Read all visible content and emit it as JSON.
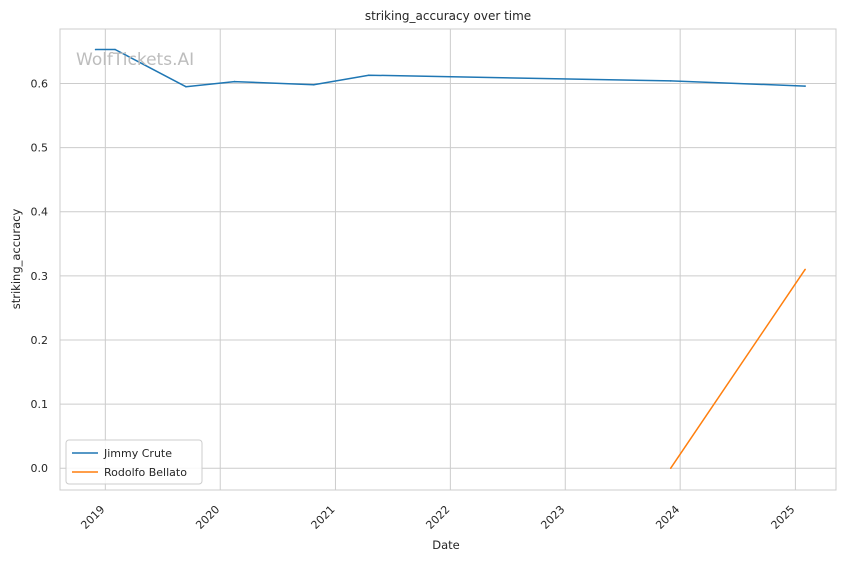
{
  "chart_data": {
    "type": "line",
    "title": "striking_accuracy over time",
    "xlabel": "Date",
    "ylabel": "striking_accuracy",
    "watermark": "WolfTickets.AI",
    "x_ticks": [
      "2019",
      "2020",
      "2021",
      "2022",
      "2023",
      "2024",
      "2025"
    ],
    "y_ticks": [
      "0.0",
      "0.1",
      "0.2",
      "0.3",
      "0.4",
      "0.5",
      "0.6"
    ],
    "xlim": [
      "2018-08-10",
      "2025-05-10"
    ],
    "ylim": [
      -0.034,
      0.685
    ],
    "grid": true,
    "legend_position": "lower-left",
    "series": [
      {
        "name": "Jimmy Crute",
        "color": "#1f77b4",
        "x": [
          "2018-12-01",
          "2019-02-01",
          "2019-09-14",
          "2020-02-15",
          "2020-10-24",
          "2021-04-17",
          "2023-12-02",
          "2025-02-01"
        ],
        "y": [
          0.653,
          0.653,
          0.595,
          0.603,
          0.598,
          0.613,
          0.604,
          0.596
        ]
      },
      {
        "name": "Rodolfo Bellato",
        "color": "#ff7f0e",
        "x": [
          "2023-12-02",
          "2025-02-01"
        ],
        "y": [
          0.0,
          0.31
        ]
      }
    ]
  }
}
